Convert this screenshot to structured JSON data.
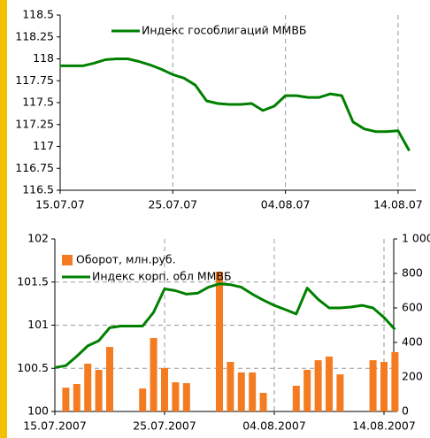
{
  "chart_data": [
    {
      "type": "line",
      "categories": [
        "15.07.07",
        null,
        null,
        null,
        null,
        null,
        null,
        null,
        null,
        null,
        "25.07.07",
        null,
        null,
        null,
        null,
        null,
        null,
        null,
        null,
        null,
        "04.08.07",
        null,
        null,
        null,
        null,
        null,
        null,
        null,
        null,
        null,
        "14.08.07",
        null
      ],
      "series": [
        {
          "name": "Индекс гособлигаций ММВБ",
          "color": "#008000",
          "values": [
            117.92,
            117.92,
            117.92,
            117.95,
            117.99,
            118.0,
            118.0,
            117.97,
            117.93,
            117.88,
            117.82,
            117.78,
            117.7,
            117.52,
            117.49,
            117.48,
            117.48,
            117.49,
            117.41,
            117.46,
            117.58,
            117.58,
            117.56,
            117.56,
            117.6,
            117.58,
            117.28,
            117.2,
            117.17,
            117.17,
            117.18,
            116.95
          ]
        }
      ],
      "ylim": [
        116.5,
        118.5
      ],
      "yticks": [
        116.5,
        116.75,
        117,
        117.25,
        117.5,
        117.75,
        118,
        118.25,
        118.5
      ],
      "xgrid": true,
      "legend": "top"
    },
    {
      "type": "combo",
      "categories": [
        "15.07.2007",
        null,
        null,
        null,
        null,
        null,
        null,
        null,
        null,
        null,
        "25.07.2007",
        null,
        null,
        null,
        null,
        null,
        null,
        null,
        null,
        null,
        "04.08.2007",
        null,
        null,
        null,
        null,
        null,
        null,
        null,
        null,
        null,
        "14.08.2007",
        null
      ],
      "series": [
        {
          "name": "Оборот, млн.руб.",
          "type": "bar",
          "axis": "y2",
          "color": "#f47b20",
          "values": [
            null,
            138,
            159,
            277,
            241,
            374,
            null,
            null,
            133,
            426,
            251,
            169,
            164,
            null,
            null,
            810,
            287,
            226,
            226,
            108,
            null,
            null,
            149,
            241,
            297,
            318,
            215,
            null,
            null,
            297,
            287,
            344
          ]
        },
        {
          "name": "Индекс корп. обл ММВБ",
          "type": "line",
          "color": "#008000",
          "values": [
            100.51,
            100.53,
            100.64,
            100.76,
            100.82,
            100.97,
            100.99,
            100.99,
            100.99,
            101.15,
            101.42,
            101.4,
            101.36,
            101.37,
            101.44,
            101.48,
            101.47,
            101.44,
            101.36,
            101.29,
            101.23,
            101.18,
            101.13,
            101.43,
            101.3,
            101.2,
            101.2,
            101.21,
            101.23,
            101.2,
            101.09,
            100.95
          ]
        }
      ],
      "ylim": [
        100,
        102
      ],
      "yticks": [
        100,
        100.5,
        101,
        101.5,
        102
      ],
      "y2lim": [
        0,
        1000
      ],
      "y2ticks": [
        0,
        200,
        400,
        600,
        800,
        {
          "value": 1000,
          "label": "1 000"
        }
      ],
      "xgrid": true,
      "ygrid": true,
      "legend": "top-left"
    }
  ]
}
